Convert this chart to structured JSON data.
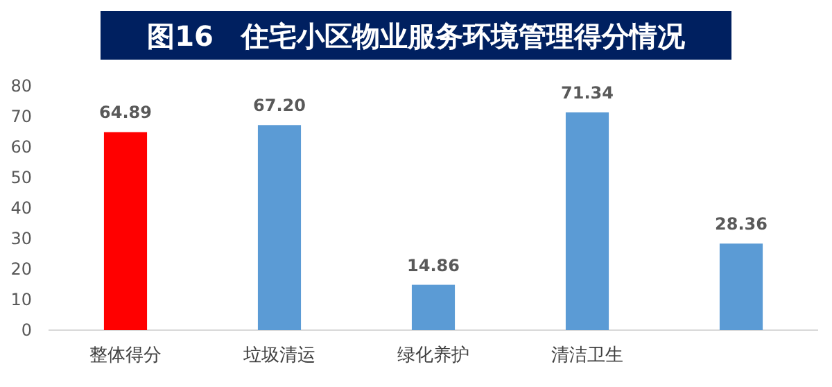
{
  "chart_data": {
    "type": "bar",
    "title": "图16　住宅小区物业服务环境管理得分情况",
    "categories": [
      "整体得分",
      "垃圾清运",
      "绿化养护",
      "清洁卫生",
      null
    ],
    "values": [
      64.89,
      67.2,
      14.86,
      71.34,
      28.36
    ],
    "colors": [
      "#ff0000",
      "#5b9bd5",
      "#5b9bd5",
      "#5b9bd5",
      "#5b9bd5"
    ],
    "value_labels": [
      "64.89",
      "67.20",
      "14.86",
      "71.34",
      "28.36"
    ],
    "ylim": [
      0,
      80
    ],
    "yticks": [
      0,
      10,
      20,
      30,
      40,
      50,
      60,
      70,
      80
    ],
    "grid": false
  }
}
